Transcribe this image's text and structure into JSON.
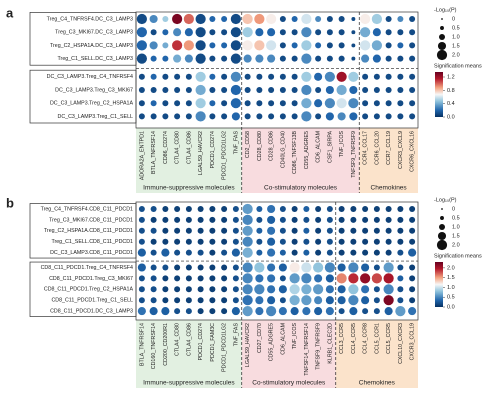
{
  "chart_data": [
    {
      "type": "dotplot",
      "panel_label": "a",
      "row_blocks": [
        [
          "Treg_C4_TNFRSF4.DC_C3_LAMP3",
          "Treg_C3_MKI67.DC_C3_LAMP3",
          "Treg_C2_HSPA1A.DC_C3_LAMP3",
          "Treg_C1_SELL.DC_C3_LAMP3"
        ],
        [
          "DC_C3_LAMP3.Treg_C4_TNFRSF4",
          "DC_C3_LAMP3.Treg_C3_MKI67",
          "DC_C3_LAMP3.Treg_C2_HSPA1A",
          "DC_C3_LAMP3.Treg_C1_SELL"
        ]
      ],
      "groups": [
        {
          "name": "Immune-suppressive molecules",
          "color": "#e2f0e1",
          "text_color": "#3e9a4c",
          "columns": [
            "ADORA2A_ENTPD1",
            "BTLA_TNFRSF14",
            "CD86_CD274",
            "CTLA4_CD80",
            "CTLA4_CD86",
            "LGALS9_HAVCR2",
            "PDCD1_CD274",
            "PDCD1_PDCD1LG2",
            "TNF_FAS"
          ]
        },
        {
          "name": "Co-stimulatory molecules",
          "color": "#f8dcdf",
          "text_color": "#d1375a",
          "columns": [
            "CD2_CD58",
            "CD28_CD80",
            "CD28_CD86",
            "CD40LG_CD40",
            "CD86_TNFSF13B",
            "CD55_ADGRE5",
            "CD6_ALCAM",
            "CSF1_SIRPA",
            "TNF_ICOS",
            "TNFSF9_TNFRSF9"
          ]
        },
        {
          "name": "Chemokines",
          "color": "#fbe3cb",
          "text_color": "#e07a1a",
          "columns": [
            "CCR4_CCL17",
            "CCR6_CCL20",
            "CCR7_CCL19",
            "CXCR3_CXCL9",
            "CXCR6_CXCL16"
          ]
        }
      ],
      "means": [
        [
          0.1,
          0.3,
          0.5,
          1.3,
          1.0,
          0.1,
          0.2,
          0.2,
          0.1,
          0.8,
          0.9,
          0.7,
          0.1,
          0.2,
          0.6,
          0.3,
          0.1,
          0.1,
          0.1,
          0.7,
          0.5,
          0.1,
          0.3,
          0.1
        ],
        [
          0.2,
          0.1,
          0.2,
          0.3,
          0.2,
          0.1,
          0.1,
          0.1,
          0.1,
          0.5,
          0.2,
          0.2,
          0.1,
          0.1,
          0.3,
          0.1,
          0.1,
          0.1,
          0.1,
          0.4,
          0.2,
          0.1,
          0.1,
          0.1
        ],
        [
          0.2,
          0.3,
          0.4,
          1.1,
          0.9,
          0.1,
          0.2,
          0.2,
          0.1,
          0.7,
          0.8,
          0.6,
          0.1,
          0.2,
          0.5,
          0.2,
          0.1,
          0.1,
          0.1,
          0.6,
          0.4,
          0.1,
          0.2,
          0.1
        ],
        [
          0.1,
          0.2,
          0.2,
          0.4,
          0.3,
          0.1,
          0.1,
          0.1,
          0.1,
          0.3,
          0.3,
          0.3,
          0.1,
          0.1,
          0.3,
          0.1,
          0.1,
          0.1,
          0.1,
          0.3,
          0.2,
          0.1,
          0.1,
          0.1
        ],
        [
          0.1,
          0.2,
          0.1,
          0.1,
          0.1,
          0.5,
          0.2,
          0.1,
          0.3,
          0.1,
          0.1,
          0.1,
          0.1,
          0.1,
          0.5,
          0.2,
          0.3,
          1.2,
          0.5,
          0.1,
          0.1,
          0.1,
          0.1,
          0.1
        ],
        [
          0.1,
          0.1,
          0.1,
          0.1,
          0.1,
          0.4,
          0.1,
          0.1,
          0.2,
          0.1,
          0.1,
          0.1,
          0.1,
          0.1,
          0.3,
          0.1,
          0.2,
          0.4,
          0.2,
          0.1,
          0.1,
          0.1,
          0.1,
          0.1
        ],
        [
          0.1,
          0.2,
          0.1,
          0.1,
          0.1,
          0.5,
          0.2,
          0.1,
          0.2,
          0.1,
          0.1,
          0.1,
          0.1,
          0.1,
          0.4,
          0.2,
          0.3,
          0.6,
          0.3,
          0.1,
          0.1,
          0.1,
          0.1,
          0.1
        ],
        [
          0.1,
          0.1,
          0.1,
          0.1,
          0.1,
          0.3,
          0.1,
          0.1,
          0.2,
          0.1,
          0.1,
          0.1,
          0.1,
          0.1,
          0.3,
          0.1,
          0.2,
          0.3,
          0.2,
          0.1,
          0.1,
          0.1,
          0.1,
          0.1
        ]
      ],
      "sizes": [
        [
          2,
          1.5,
          1,
          2,
          2,
          2,
          1,
          1,
          2,
          2,
          2,
          2,
          1,
          1,
          2,
          1,
          1,
          1,
          0.5,
          2,
          2,
          1,
          1,
          1
        ],
        [
          2,
          1,
          1,
          1.5,
          1.5,
          2,
          1,
          1,
          2,
          2,
          1.5,
          1.5,
          1,
          1,
          2,
          1,
          1,
          1,
          0.5,
          2,
          1.5,
          1,
          1,
          1
        ],
        [
          2,
          1.5,
          1,
          2,
          2,
          2,
          1,
          1,
          2,
          2,
          2,
          2,
          1,
          1,
          2,
          1,
          1,
          1,
          0.5,
          2,
          2,
          1,
          1,
          1
        ],
        [
          2,
          1,
          1,
          1.5,
          1.5,
          2,
          1,
          1,
          2,
          1.5,
          1.5,
          1.5,
          1,
          1,
          2,
          1,
          1,
          1,
          0.5,
          1.5,
          1.5,
          1,
          1,
          1
        ],
        [
          1,
          1,
          1,
          1,
          1,
          2,
          1,
          1,
          2,
          1,
          1,
          1,
          1,
          1,
          2,
          1.5,
          2,
          2,
          2,
          1,
          1,
          1,
          1,
          1
        ],
        [
          1,
          1,
          1,
          1,
          1,
          2,
          1,
          1,
          2,
          1,
          1,
          1,
          1,
          1,
          2,
          1,
          1.5,
          2,
          1.5,
          1,
          1,
          1,
          1,
          1
        ],
        [
          1,
          1,
          1,
          1,
          1,
          2,
          1,
          1,
          2,
          1,
          1,
          1,
          1,
          1,
          2,
          1.5,
          2,
          2,
          2,
          1,
          1,
          1,
          1,
          1
        ],
        [
          1,
          1,
          1,
          1,
          1,
          2,
          1,
          1,
          1.5,
          1,
          1,
          1,
          1,
          1,
          2,
          1,
          1.5,
          1.5,
          1.5,
          1,
          1,
          1,
          1,
          1
        ]
      ],
      "size_legend": {
        "title": "-Log₁₀(P)",
        "ticks": [
          0,
          0.5,
          {
            "value": 1,
            "label": "1.0"
          },
          1.5,
          {
            "value": 2,
            "label": "2.0"
          }
        ]
      },
      "color_legend": {
        "title": "Signification means",
        "lim": [
          0,
          1.35
        ],
        "ticks": [
          {
            "value": 0,
            "label": "0.0"
          },
          0.4,
          0.8,
          1.2
        ]
      }
    },
    {
      "type": "dotplot",
      "panel_label": "b",
      "row_blocks": [
        [
          "Treg_C4_TNFRSF4.CD8_C11_PDCD1",
          "Treg_C3_MKI67.CD8_C11_PDCD1",
          "Treg_C2_HSPA1A.CD8_C11_PDCD1",
          "Treg_C1_SELL.CD8_C11_PDCD1",
          "DC_C3_LAMP3.CD8_C11_PDCD1"
        ],
        [
          "CD8_C11_PDCD1.Treg_C4_TNFRSF4",
          "CD8_C11_PDCD1.Treg_C3_MKI67",
          "CD8_C11_PDCD1.Treg_C2_HSPA1A",
          "CD8_C11_PDCD1.Treg_C1_SELL",
          "CD8_C11_PDCD1.DC_C3_LAMP3"
        ]
      ],
      "groups": [
        {
          "name": "Immune-suppressive molecules",
          "color": "#e2f0e1",
          "text_color": "#3e9a4c",
          "columns": [
            "BTLA_TNFRSF14",
            "CD160_TNFRSF14",
            "CD200_CD200R1",
            "CTLA4_CD80",
            "CTLA4_CD86",
            "PDCD1_CD274",
            "PDCD1_FAM3C",
            "PDCD1_PDCD1LG2",
            "TNF_FAS"
          ]
        },
        {
          "name": "Co-stimulatory molecules",
          "color": "#f8dcdf",
          "text_color": "#d1375a",
          "columns": [
            "LGALS9_HAVCR2",
            "CD27_CD70",
            "CD55_ADGRE5",
            "CD6_ALCAM",
            "TNF_ICOS",
            "TNFSF14_TNFRSF14",
            "TNFSF9_TNFRSF9",
            "KLRB1_CLEC2D"
          ]
        },
        {
          "name": "Chemokines",
          "color": "#fbe3cb",
          "text_color": "#e07a1a",
          "columns": [
            "CCL3_CCR5",
            "CCL4_CCR5",
            "CCL4_CCR8",
            "CCL5_CCR1",
            "CCL5_CCR5",
            "CXCL10_CXCR3",
            "CXCR3_CCL19"
          ]
        }
      ],
      "means": [
        [
          0.2,
          0.2,
          0.1,
          0.1,
          0.1,
          0.1,
          0.1,
          0.1,
          0.2,
          0.6,
          0.3,
          0.4,
          0.2,
          0.1,
          0.3,
          0.1,
          0.2,
          0.1,
          0.1,
          0.1,
          0.1,
          0.1,
          0.1,
          0.1
        ],
        [
          0.2,
          0.1,
          0.1,
          0.1,
          0.1,
          0.1,
          0.1,
          0.1,
          0.2,
          0.5,
          0.2,
          0.3,
          0.2,
          0.1,
          0.2,
          0.1,
          0.2,
          0.1,
          0.1,
          0.1,
          0.1,
          0.1,
          0.1,
          0.1
        ],
        [
          0.2,
          0.2,
          0.1,
          0.1,
          0.1,
          0.1,
          0.1,
          0.1,
          0.2,
          0.6,
          0.3,
          0.4,
          0.2,
          0.1,
          0.3,
          0.1,
          0.2,
          0.1,
          0.1,
          0.1,
          0.1,
          0.1,
          0.1,
          0.1
        ],
        [
          0.2,
          0.1,
          0.1,
          0.1,
          0.1,
          0.1,
          0.1,
          0.1,
          0.2,
          0.5,
          0.2,
          0.3,
          0.2,
          0.1,
          0.2,
          0.1,
          0.2,
          0.1,
          0.1,
          0.1,
          0.1,
          0.1,
          0.1,
          0.1
        ],
        [
          0.3,
          0.2,
          0.3,
          0.2,
          0.2,
          0.2,
          0.1,
          0.2,
          0.3,
          0.7,
          0.3,
          0.4,
          0.3,
          0.1,
          0.3,
          0.1,
          0.2,
          0.1,
          0.1,
          0.1,
          0.1,
          0.1,
          0.2,
          0.3
        ],
        [
          0.3,
          0.2,
          0.2,
          0.1,
          0.1,
          0.1,
          0.1,
          0.1,
          0.2,
          0.5,
          0.8,
          0.4,
          0.3,
          1.2,
          1.0,
          0.8,
          0.5,
          0.3,
          0.5,
          0.3,
          0.2,
          0.6,
          0.2,
          0.1
        ],
        [
          0.2,
          0.2,
          0.1,
          0.1,
          0.1,
          0.1,
          0.1,
          0.1,
          0.2,
          0.5,
          0.4,
          0.4,
          0.2,
          0.6,
          0.5,
          0.4,
          0.3,
          1.6,
          1.9,
          2.1,
          1.8,
          2.0,
          0.3,
          0.1
        ],
        [
          0.2,
          0.2,
          0.1,
          0.1,
          0.1,
          0.1,
          0.1,
          0.1,
          0.2,
          0.5,
          0.5,
          0.4,
          0.3,
          0.9,
          0.7,
          0.6,
          0.4,
          0.3,
          0.8,
          0.4,
          0.2,
          0.5,
          0.2,
          0.1
        ],
        [
          0.2,
          0.2,
          0.1,
          0.1,
          0.1,
          0.1,
          0.1,
          0.1,
          0.2,
          0.4,
          0.4,
          0.3,
          0.2,
          0.7,
          0.6,
          0.5,
          0.3,
          0.3,
          0.5,
          0.3,
          0.2,
          2.2,
          0.2,
          0.1
        ],
        [
          0.4,
          0.3,
          0.3,
          0.2,
          0.2,
          0.1,
          0.1,
          0.1,
          0.3,
          0.6,
          0.4,
          0.5,
          0.4,
          0.3,
          0.4,
          0.3,
          0.4,
          0.2,
          0.3,
          0.2,
          0.2,
          0.3,
          0.6,
          0.4
        ]
      ],
      "sizes": [
        [
          1,
          1,
          1,
          1,
          1,
          1,
          1,
          1,
          1,
          2,
          1,
          1.5,
          1,
          1,
          1,
          1,
          1,
          1,
          1,
          1,
          1,
          1,
          1,
          1
        ],
        [
          1,
          1,
          1,
          1,
          1,
          1,
          1,
          1,
          1,
          2,
          1,
          1.5,
          1,
          1,
          1,
          1,
          1,
          1,
          1,
          1,
          1,
          1,
          1,
          1
        ],
        [
          1,
          1,
          1,
          1,
          1,
          1,
          1,
          1,
          1,
          2,
          1,
          1.5,
          1,
          1,
          1,
          1,
          1,
          1,
          1,
          1,
          1,
          1,
          1,
          1
        ],
        [
          1,
          1,
          1,
          1,
          1,
          1,
          1,
          1,
          1,
          2,
          1,
          1.5,
          1,
          1,
          1,
          1,
          1,
          1,
          1,
          1,
          1,
          1,
          1,
          1
        ],
        [
          1.5,
          1,
          1.5,
          1,
          1,
          1,
          1,
          1,
          1.5,
          2,
          1,
          1.5,
          1,
          1,
          1,
          1,
          1,
          1,
          1,
          1,
          1,
          1,
          1,
          1.5
        ],
        [
          1.5,
          1,
          1,
          1,
          1,
          1,
          1,
          1,
          1,
          2,
          2,
          1.5,
          1.5,
          2,
          2,
          2,
          2,
          1.5,
          2,
          1.5,
          1,
          2,
          1,
          1
        ],
        [
          1,
          1,
          1,
          1,
          1,
          1,
          1,
          1,
          1,
          2,
          1.5,
          1.5,
          1,
          2,
          2,
          1.5,
          1.5,
          2,
          2,
          2,
          2,
          2,
          1,
          1
        ],
        [
          1,
          1,
          1,
          1,
          1,
          1,
          1,
          1,
          1,
          2,
          2,
          1.5,
          1.5,
          2,
          2,
          2,
          1.5,
          1.5,
          2,
          1.5,
          1,
          2,
          1,
          1
        ],
        [
          1,
          1,
          1,
          1,
          1,
          1,
          1,
          1,
          1,
          2,
          1.5,
          1.5,
          1,
          2,
          2,
          1.5,
          1.5,
          1.5,
          2,
          1.5,
          1,
          2,
          1,
          1
        ],
        [
          1.5,
          1.5,
          1.5,
          1,
          1,
          1,
          1,
          1,
          1.5,
          2,
          1.5,
          2,
          1.5,
          1.5,
          1.5,
          1.5,
          1.5,
          1,
          1.5,
          1,
          1,
          1.5,
          2,
          1.5
        ]
      ],
      "size_legend": {
        "title": "-Log₁₀(P)",
        "ticks": [
          0,
          0.5,
          {
            "value": 1,
            "label": "1.0"
          },
          1.5,
          {
            "value": 2,
            "label": "2.0"
          }
        ]
      },
      "color_legend": {
        "title": "Signification means",
        "lim": [
          0,
          2.3
        ],
        "ticks": [
          {
            "value": 0,
            "label": "0.0"
          },
          0.5,
          {
            "value": 1,
            "label": "1.0"
          },
          1.5,
          {
            "value": 2,
            "label": "2.0"
          }
        ]
      }
    }
  ]
}
